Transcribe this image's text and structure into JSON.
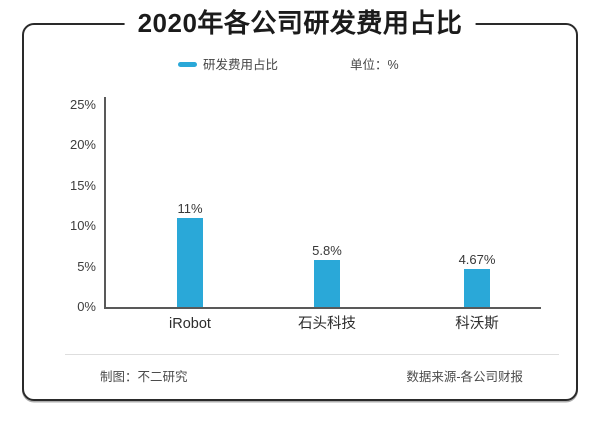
{
  "title": "2020年各公司研发费用占比",
  "legend": {
    "series_label": "研发费用占比",
    "unit_label": "单位：%"
  },
  "colors": {
    "bar": "#2aa8d8",
    "axis": "#595959",
    "frame": "#2a2a2a"
  },
  "chart_data": {
    "type": "bar",
    "title": "2020年各公司研发费用占比",
    "series_name": "研发费用占比",
    "unit": "%",
    "categories": [
      "iRobot",
      "石头科技",
      "科沃斯"
    ],
    "values": [
      11,
      5.8,
      4.67
    ],
    "value_labels": [
      "11%",
      "5.8%",
      "4.67%"
    ],
    "xlabel": "",
    "ylabel": "",
    "ylim": [
      0,
      25
    ],
    "ytick_values": [
      0,
      5,
      10,
      15,
      20,
      25
    ],
    "ytick_labels": [
      "0%",
      "5%",
      "10%",
      "15%",
      "20%",
      "25%"
    ],
    "grid": false,
    "legend_position": "top-center"
  },
  "footer": {
    "credit": "制图：不二研究",
    "source": "数据来源-各公司财报"
  }
}
